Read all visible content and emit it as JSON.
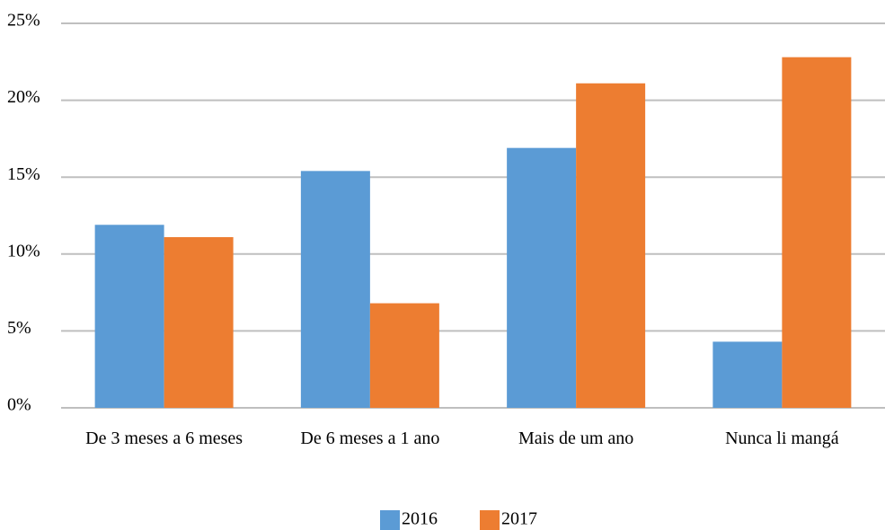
{
  "chart_data": {
    "type": "bar",
    "categories": [
      "De 3 meses a 6 meses",
      "De 6 meses a 1 ano",
      "Mais de um ano",
      "Nunca li mangá"
    ],
    "series": [
      {
        "name": "2016",
        "color": "#5b9bd5",
        "values": [
          11.9,
          15.4,
          16.9,
          4.3
        ]
      },
      {
        "name": "2017",
        "color": "#ed7d31",
        "values": [
          11.1,
          6.8,
          21.1,
          22.8
        ]
      }
    ],
    "ylim": [
      0,
      25
    ],
    "yticks": [
      {
        "value": 0,
        "label": "0%"
      },
      {
        "value": 5,
        "label": "5%"
      },
      {
        "value": 10,
        "label": "10%"
      },
      {
        "value": 15,
        "label": "15%"
      },
      {
        "value": 20,
        "label": "20%"
      },
      {
        "value": 25,
        "label": "25%"
      }
    ],
    "grid": true,
    "legend": "bottom"
  }
}
